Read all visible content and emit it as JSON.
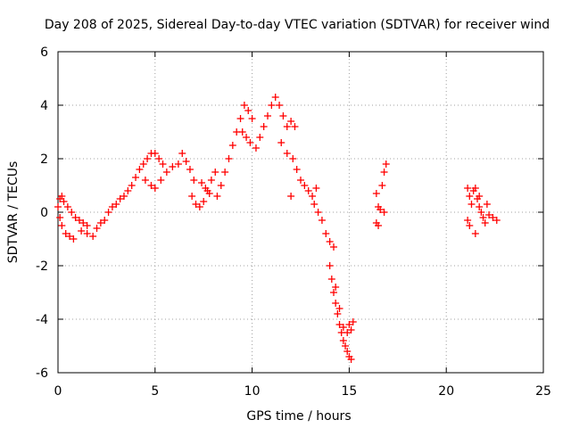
{
  "chart_data": {
    "type": "scatter",
    "title": "Day 208 of 2025, Sidereal Day-to-day VTEC variation (SDTVAR) for receiver wind",
    "xlabel": "GPS time / hours",
    "ylabel": "SDTVAR / TECUs",
    "xlim": [
      0,
      25
    ],
    "ylim": [
      -6,
      6
    ],
    "x_ticks": [
      0,
      5,
      10,
      15,
      20,
      25
    ],
    "y_ticks": [
      -6,
      -4,
      -2,
      0,
      2,
      4,
      6
    ],
    "x_tick_labels": [
      "0",
      "5",
      "10",
      "15",
      "20",
      "25"
    ],
    "y_tick_labels": [
      "-6",
      "-4",
      "-2",
      "0",
      "2",
      "4",
      "6"
    ],
    "grid": true,
    "marker": "+",
    "series": [
      {
        "name": "SDTVAR",
        "color": "#ff0000",
        "points": [
          [
            0.0,
            0.2
          ],
          [
            0.1,
            0.5
          ],
          [
            0.2,
            0.6
          ],
          [
            0.3,
            0.4
          ],
          [
            0.1,
            -0.2
          ],
          [
            0.2,
            -0.5
          ],
          [
            0.4,
            -0.8
          ],
          [
            0.6,
            -0.9
          ],
          [
            0.8,
            -1.0
          ],
          [
            0.5,
            0.2
          ],
          [
            0.7,
            0.0
          ],
          [
            0.9,
            -0.2
          ],
          [
            1.1,
            -0.3
          ],
          [
            1.3,
            -0.4
          ],
          [
            1.5,
            -0.5
          ],
          [
            1.2,
            -0.7
          ],
          [
            1.5,
            -0.8
          ],
          [
            1.8,
            -0.9
          ],
          [
            2.0,
            -0.6
          ],
          [
            2.2,
            -0.4
          ],
          [
            2.4,
            -0.3
          ],
          [
            2.6,
            0.0
          ],
          [
            2.8,
            0.2
          ],
          [
            3.0,
            0.3
          ],
          [
            3.2,
            0.5
          ],
          [
            3.4,
            0.6
          ],
          [
            3.6,
            0.8
          ],
          [
            3.8,
            1.0
          ],
          [
            4.0,
            1.3
          ],
          [
            4.2,
            1.6
          ],
          [
            4.4,
            1.8
          ],
          [
            4.6,
            2.0
          ],
          [
            4.8,
            2.2
          ],
          [
            5.0,
            2.2
          ],
          [
            5.2,
            2.0
          ],
          [
            5.4,
            1.8
          ],
          [
            4.5,
            1.2
          ],
          [
            4.8,
            1.0
          ],
          [
            5.0,
            0.9
          ],
          [
            5.3,
            1.2
          ],
          [
            5.6,
            1.5
          ],
          [
            5.9,
            1.7
          ],
          [
            6.2,
            1.8
          ],
          [
            6.4,
            2.2
          ],
          [
            6.6,
            1.9
          ],
          [
            6.8,
            1.6
          ],
          [
            7.0,
            1.2
          ],
          [
            6.9,
            0.6
          ],
          [
            7.1,
            0.3
          ],
          [
            7.3,
            0.2
          ],
          [
            7.5,
            0.4
          ],
          [
            7.7,
            0.8
          ],
          [
            7.9,
            1.2
          ],
          [
            8.1,
            1.5
          ],
          [
            7.4,
            1.1
          ],
          [
            7.6,
            0.9
          ],
          [
            7.8,
            0.7
          ],
          [
            8.2,
            0.6
          ],
          [
            8.4,
            1.0
          ],
          [
            8.6,
            1.5
          ],
          [
            8.8,
            2.0
          ],
          [
            9.0,
            2.5
          ],
          [
            9.2,
            3.0
          ],
          [
            9.4,
            3.5
          ],
          [
            9.6,
            4.0
          ],
          [
            9.8,
            3.8
          ],
          [
            10.0,
            3.5
          ],
          [
            9.5,
            3.0
          ],
          [
            9.7,
            2.8
          ],
          [
            9.9,
            2.6
          ],
          [
            10.2,
            2.4
          ],
          [
            10.4,
            2.8
          ],
          [
            10.6,
            3.2
          ],
          [
            10.8,
            3.6
          ],
          [
            11.0,
            4.0
          ],
          [
            11.2,
            4.3
          ],
          [
            11.4,
            4.0
          ],
          [
            11.6,
            3.6
          ],
          [
            11.8,
            3.2
          ],
          [
            12.0,
            3.4
          ],
          [
            12.2,
            3.2
          ],
          [
            11.5,
            2.6
          ],
          [
            11.8,
            2.2
          ],
          [
            12.1,
            2.0
          ],
          [
            12.3,
            1.6
          ],
          [
            12.5,
            1.2
          ],
          [
            12.7,
            1.0
          ],
          [
            12.9,
            0.8
          ],
          [
            13.1,
            0.6
          ],
          [
            13.3,
            0.9
          ],
          [
            12.0,
            0.6
          ],
          [
            13.2,
            0.3
          ],
          [
            13.4,
            0.0
          ],
          [
            13.6,
            -0.3
          ],
          [
            13.8,
            -0.8
          ],
          [
            14.0,
            -1.1
          ],
          [
            14.2,
            -1.3
          ],
          [
            14.0,
            -2.0
          ],
          [
            14.1,
            -2.5
          ],
          [
            14.2,
            -3.0
          ],
          [
            14.3,
            -3.4
          ],
          [
            14.4,
            -3.8
          ],
          [
            14.5,
            -4.2
          ],
          [
            14.6,
            -4.5
          ],
          [
            14.7,
            -4.8
          ],
          [
            14.8,
            -5.0
          ],
          [
            14.9,
            -5.2
          ],
          [
            15.0,
            -5.4
          ],
          [
            15.1,
            -5.5
          ],
          [
            14.9,
            -4.5
          ],
          [
            15.0,
            -4.2
          ],
          [
            15.1,
            -4.4
          ],
          [
            15.2,
            -4.1
          ],
          [
            14.3,
            -2.8
          ],
          [
            14.5,
            -3.6
          ],
          [
            14.7,
            -4.3
          ],
          [
            16.4,
            0.7
          ],
          [
            16.5,
            0.2
          ],
          [
            16.6,
            0.1
          ],
          [
            16.4,
            -0.4
          ],
          [
            16.5,
            -0.5
          ],
          [
            16.7,
            1.0
          ],
          [
            16.8,
            1.5
          ],
          [
            16.9,
            1.8
          ],
          [
            16.8,
            0.0
          ],
          [
            21.1,
            0.9
          ],
          [
            21.2,
            0.6
          ],
          [
            21.3,
            0.3
          ],
          [
            21.1,
            -0.3
          ],
          [
            21.2,
            -0.5
          ],
          [
            21.4,
            0.8
          ],
          [
            21.5,
            0.9
          ],
          [
            21.6,
            0.5
          ],
          [
            21.7,
            0.2
          ],
          [
            21.8,
            0.0
          ],
          [
            21.9,
            -0.2
          ],
          [
            22.0,
            -0.4
          ],
          [
            22.2,
            -0.1
          ],
          [
            22.4,
            -0.2
          ],
          [
            22.6,
            -0.3
          ],
          [
            21.5,
            -0.8
          ],
          [
            21.7,
            0.6
          ],
          [
            22.1,
            0.3
          ]
        ]
      }
    ]
  }
}
